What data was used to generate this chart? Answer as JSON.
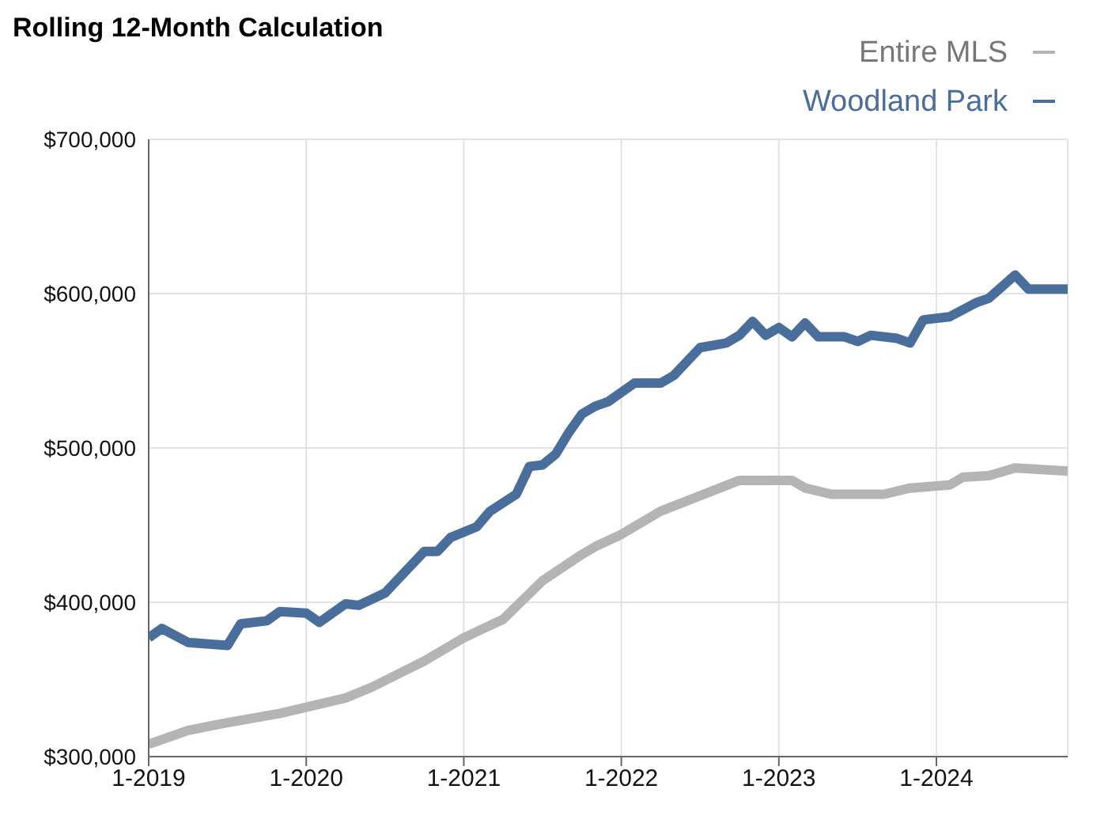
{
  "chart_data": {
    "type": "line",
    "title": "Rolling 12-Month Calculation",
    "xlim": [
      "2019-01",
      "2024-11"
    ],
    "xticks": [
      {
        "value": "2019-01",
        "label": "1-2019"
      },
      {
        "value": "2020-01",
        "label": "1-2020"
      },
      {
        "value": "2021-01",
        "label": "1-2021"
      },
      {
        "value": "2022-01",
        "label": "1-2022"
      },
      {
        "value": "2023-01",
        "label": "1-2023"
      },
      {
        "value": "2024-01",
        "label": "1-2024"
      }
    ],
    "ylim": [
      300000,
      700000
    ],
    "yticks": [
      {
        "value": 300000,
        "label": "$300,000"
      },
      {
        "value": 400000,
        "label": "$400,000"
      },
      {
        "value": 500000,
        "label": "$500,000"
      },
      {
        "value": 600000,
        "label": "$600,000"
      },
      {
        "value": 700000,
        "label": "$700,000"
      }
    ],
    "grid": true,
    "legend": "top right",
    "marker": "none",
    "line_style": "solid",
    "series": [
      {
        "name": "Entire MLS",
        "color": "#b4b4b4",
        "x": [
          "2019-01",
          "2019-04",
          "2019-07",
          "2019-11",
          "2020-01",
          "2020-04",
          "2020-06",
          "2020-10",
          "2021-01",
          "2021-04",
          "2021-07",
          "2021-10",
          "2021-11",
          "2022-01",
          "2022-04",
          "2022-07",
          "2022-10",
          "2023-02",
          "2023-03",
          "2023-05",
          "2023-09",
          "2023-11",
          "2024-02",
          "2024-03",
          "2024-05",
          "2024-07",
          "2024-11"
        ],
        "values": [
          308000,
          317000,
          322000,
          328000,
          332000,
          338000,
          345000,
          362000,
          377000,
          389000,
          414000,
          431000,
          436000,
          444000,
          459000,
          469000,
          479000,
          479000,
          474000,
          470000,
          470000,
          474000,
          476000,
          481000,
          482000,
          487000,
          485000
        ]
      },
      {
        "name": "Woodland Park",
        "color": "#4a6e9c",
        "x": [
          "2019-01",
          "2019-02",
          "2019-04",
          "2019-07",
          "2019-08",
          "2019-10",
          "2019-11",
          "2020-01",
          "2020-02",
          "2020-04",
          "2020-05",
          "2020-07",
          "2020-08",
          "2020-10",
          "2020-11",
          "2020-12",
          "2021-02",
          "2021-03",
          "2021-05",
          "2021-06",
          "2021-07",
          "2021-08",
          "2021-09",
          "2021-10",
          "2021-11",
          "2021-12",
          "2022-02",
          "2022-04",
          "2022-05",
          "2022-07",
          "2022-09",
          "2022-10",
          "2022-11",
          "2022-12",
          "2023-01",
          "2023-02",
          "2023-03",
          "2023-04",
          "2023-06",
          "2023-07",
          "2023-08",
          "2023-10",
          "2023-11",
          "2023-12",
          "2024-02",
          "2024-04",
          "2024-05",
          "2024-07",
          "2024-08",
          "2024-11"
        ],
        "values": [
          377000,
          383000,
          374000,
          372000,
          386000,
          388000,
          394000,
          393000,
          387000,
          399000,
          398000,
          406000,
          415000,
          433000,
          433000,
          442000,
          449000,
          459000,
          470000,
          488000,
          489000,
          496000,
          510000,
          522000,
          527000,
          530000,
          542000,
          542000,
          547000,
          565000,
          568000,
          573000,
          582000,
          573000,
          578000,
          572000,
          581000,
          572000,
          572000,
          569000,
          573000,
          571000,
          568000,
          583000,
          585000,
          594000,
          597000,
          612000,
          603000,
          603000
        ]
      }
    ]
  }
}
